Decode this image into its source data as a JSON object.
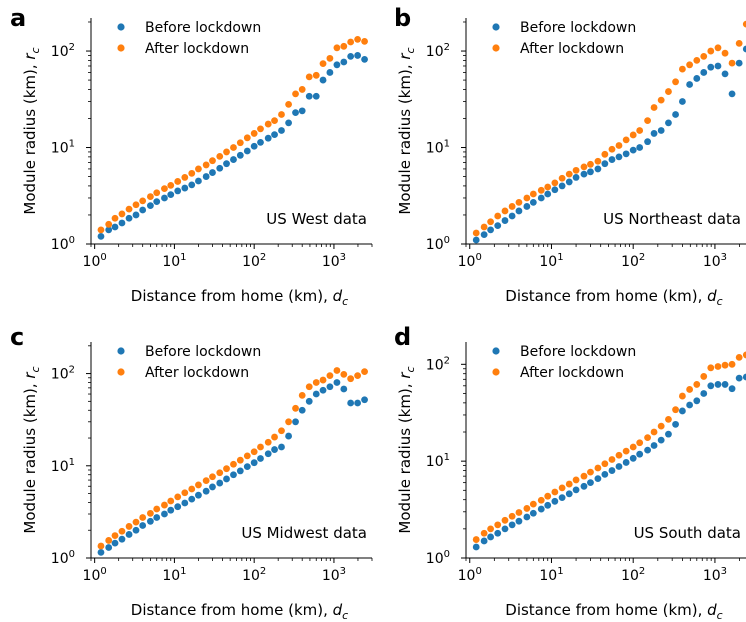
{
  "figure": {
    "panels_order": [
      "a",
      "b",
      "c",
      "d"
    ]
  },
  "chart_data": [
    {
      "panel_label": "a",
      "type": "scatter",
      "xlabel": "Distance from home (km), d_c",
      "xlabel_main": "Distance from home (km),",
      "xlabel_sym": "d",
      "xlabel_sub": "c",
      "ylabel": "Module radius (km), r_c",
      "ylabel_main": "Module radius (km),",
      "ylabel_sym": "r",
      "ylabel_sub": "c",
      "xscale": "log",
      "yscale": "log",
      "xlim": [
        0.9,
        3000
      ],
      "ylim": [
        1.0,
        220
      ],
      "x_ticks": [
        {
          "value": 1,
          "base": "10",
          "exp": "0"
        },
        {
          "value": 10,
          "base": "10",
          "exp": "1"
        },
        {
          "value": 100,
          "base": "10",
          "exp": "2"
        },
        {
          "value": 1000,
          "base": "10",
          "exp": "3"
        }
      ],
      "y_ticks": [
        {
          "value": 1,
          "base": "10",
          "exp": "0"
        },
        {
          "value": 10,
          "base": "10",
          "exp": "1"
        },
        {
          "value": 100,
          "base": "10",
          "exp": "2"
        }
      ],
      "annotation": "US West data",
      "legend_position": "top-left",
      "series": [
        {
          "name": "Before lockdown",
          "color": "#1f77b4",
          "x": [
            1.2,
            1.5,
            1.8,
            2.2,
            2.7,
            3.3,
            4,
            5,
            6,
            7.5,
            9,
            11,
            13.5,
            16.5,
            20,
            25,
            30,
            37,
            45,
            55,
            67,
            82,
            100,
            120,
            150,
            180,
            220,
            270,
            330,
            400,
            490,
            600,
            730,
            890,
            1090,
            1330,
            1620,
            1980,
            2420
          ],
          "y": [
            1.2,
            1.4,
            1.5,
            1.65,
            1.85,
            2.0,
            2.25,
            2.5,
            2.75,
            3.0,
            3.25,
            3.55,
            3.8,
            4.1,
            4.5,
            5.0,
            5.5,
            6.1,
            6.8,
            7.5,
            8.3,
            9.2,
            10.3,
            11.3,
            12.5,
            13.6,
            15,
            18,
            23,
            24,
            34,
            34,
            50,
            60,
            72,
            77,
            88,
            90,
            82
          ]
        },
        {
          "name": "After lockdown",
          "color": "#ff7f0e",
          "x": [
            1.2,
            1.5,
            1.8,
            2.2,
            2.7,
            3.3,
            4,
            5,
            6,
            7.5,
            9,
            11,
            13.5,
            16.5,
            20,
            25,
            30,
            37,
            45,
            55,
            67,
            82,
            100,
            120,
            150,
            180,
            220,
            270,
            330,
            400,
            490,
            600,
            730,
            890,
            1090,
            1330,
            1620,
            1980,
            2420
          ],
          "y": [
            1.4,
            1.6,
            1.85,
            2.05,
            2.3,
            2.55,
            2.8,
            3.1,
            3.4,
            3.75,
            4.05,
            4.45,
            4.9,
            5.4,
            6.0,
            6.6,
            7.3,
            8.1,
            9.0,
            10,
            11.2,
            12.6,
            14,
            15.6,
            17.5,
            19,
            22,
            28,
            36,
            40,
            54,
            56,
            74,
            84,
            108,
            112,
            124,
            132,
            126
          ]
        }
      ]
    },
    {
      "panel_label": "b",
      "type": "scatter",
      "xlabel": "Distance from home (km), d_c",
      "xlabel_main": "Distance from home (km),",
      "xlabel_sym": "d",
      "xlabel_sub": "c",
      "ylabel": "Module radius (km), r_c",
      "ylabel_main": "Module radius (km),",
      "ylabel_sym": "r",
      "ylabel_sub": "c",
      "xscale": "log",
      "yscale": "log",
      "xlim": [
        0.9,
        2400
      ],
      "ylim": [
        1.0,
        220
      ],
      "x_ticks": [
        {
          "value": 1,
          "base": "10",
          "exp": "0"
        },
        {
          "value": 10,
          "base": "10",
          "exp": "1"
        },
        {
          "value": 100,
          "base": "10",
          "exp": "2"
        },
        {
          "value": 1000,
          "base": "10",
          "exp": "3"
        }
      ],
      "y_ticks": [
        {
          "value": 1,
          "base": "10",
          "exp": "0"
        },
        {
          "value": 10,
          "base": "10",
          "exp": "1"
        },
        {
          "value": 100,
          "base": "10",
          "exp": "2"
        }
      ],
      "annotation": "US Northeast data",
      "legend_position": "top-left",
      "series": [
        {
          "name": "Before lockdown",
          "color": "#1f77b4",
          "x": [
            1.2,
            1.5,
            1.8,
            2.2,
            2.7,
            3.3,
            4,
            5,
            6,
            7.5,
            9,
            11,
            13.5,
            16.5,
            20,
            25,
            30,
            37,
            45,
            55,
            67,
            82,
            100,
            120,
            150,
            180,
            220,
            270,
            330,
            400,
            490,
            600,
            730,
            890,
            1090,
            1330,
            1620,
            1980,
            2420
          ],
          "y": [
            1.1,
            1.25,
            1.4,
            1.55,
            1.75,
            1.95,
            2.2,
            2.45,
            2.7,
            3.0,
            3.3,
            3.65,
            4.0,
            4.4,
            4.9,
            5.3,
            5.6,
            6.0,
            6.8,
            7.5,
            8.0,
            8.6,
            9.4,
            10,
            11.5,
            14,
            15,
            18,
            22,
            30,
            45,
            52,
            60,
            68,
            70,
            58,
            36,
            75,
            105
          ]
        },
        {
          "name": "After lockdown",
          "color": "#ff7f0e",
          "x": [
            1.2,
            1.5,
            1.8,
            2.2,
            2.7,
            3.3,
            4,
            5,
            6,
            7.5,
            9,
            11,
            13.5,
            16.5,
            20,
            25,
            30,
            37,
            45,
            55,
            67,
            82,
            100,
            120,
            150,
            180,
            220,
            270,
            330,
            400,
            490,
            600,
            730,
            890,
            1090,
            1330,
            1620,
            1980,
            2420
          ],
          "y": [
            1.3,
            1.5,
            1.7,
            1.95,
            2.2,
            2.45,
            2.7,
            3.0,
            3.3,
            3.6,
            3.9,
            4.3,
            4.8,
            5.3,
            5.8,
            6.3,
            6.7,
            7.2,
            8.5,
            9.6,
            10.5,
            12,
            13.5,
            15,
            19,
            26,
            31,
            38,
            48,
            65,
            72,
            80,
            88,
            100,
            108,
            95,
            75,
            120,
            190
          ]
        }
      ]
    },
    {
      "panel_label": "c",
      "type": "scatter",
      "xlabel": "Distance from home (km), d_c",
      "xlabel_main": "Distance from home (km),",
      "xlabel_sym": "d",
      "xlabel_sub": "c",
      "ylabel": "Module radius (km), r_c",
      "ylabel_main": "Module radius (km),",
      "ylabel_sym": "r",
      "ylabel_sub": "c",
      "xscale": "log",
      "yscale": "log",
      "xlim": [
        0.9,
        3000
      ],
      "ylim": [
        1.0,
        220
      ],
      "x_ticks": [
        {
          "value": 1,
          "base": "10",
          "exp": "0"
        },
        {
          "value": 10,
          "base": "10",
          "exp": "1"
        },
        {
          "value": 100,
          "base": "10",
          "exp": "2"
        },
        {
          "value": 1000,
          "base": "10",
          "exp": "3"
        }
      ],
      "y_ticks": [
        {
          "value": 1,
          "base": "10",
          "exp": "0"
        },
        {
          "value": 10,
          "base": "10",
          "exp": "1"
        },
        {
          "value": 100,
          "base": "10",
          "exp": "2"
        }
      ],
      "annotation": "US Midwest data",
      "legend_position": "top-left",
      "series": [
        {
          "name": "Before lockdown",
          "color": "#1f77b4",
          "x": [
            1.2,
            1.5,
            1.8,
            2.2,
            2.7,
            3.3,
            4,
            5,
            6,
            7.5,
            9,
            11,
            13.5,
            16.5,
            20,
            25,
            30,
            37,
            45,
            55,
            67,
            82,
            100,
            120,
            150,
            180,
            220,
            270,
            330,
            400,
            490,
            600,
            730,
            890,
            1090,
            1330,
            1620,
            1980,
            2420
          ],
          "y": [
            1.15,
            1.3,
            1.45,
            1.6,
            1.8,
            2.0,
            2.25,
            2.5,
            2.75,
            3.0,
            3.3,
            3.6,
            3.95,
            4.35,
            4.8,
            5.3,
            5.9,
            6.5,
            7.2,
            8.0,
            8.8,
            9.8,
            10.8,
            12,
            13.5,
            15,
            16,
            21,
            30,
            40,
            50,
            60,
            66,
            72,
            80,
            68,
            48,
            48,
            52
          ]
        },
        {
          "name": "After lockdown",
          "color": "#ff7f0e",
          "x": [
            1.2,
            1.5,
            1.8,
            2.2,
            2.7,
            3.3,
            4,
            5,
            6,
            7.5,
            9,
            11,
            13.5,
            16.5,
            20,
            25,
            30,
            37,
            45,
            55,
            67,
            82,
            100,
            120,
            150,
            180,
            220,
            270,
            330,
            400,
            490,
            600,
            730,
            890,
            1090,
            1330,
            1620,
            1980,
            2420
          ],
          "y": [
            1.35,
            1.55,
            1.75,
            1.95,
            2.2,
            2.45,
            2.75,
            3.05,
            3.4,
            3.75,
            4.15,
            4.6,
            5.1,
            5.6,
            6.2,
            6.9,
            7.6,
            8.4,
            9.3,
            10.4,
            11.5,
            12.8,
            14.2,
            16,
            18,
            20.5,
            24,
            30,
            42,
            58,
            72,
            80,
            85,
            95,
            108,
            98,
            88,
            95,
            105
          ]
        }
      ]
    },
    {
      "panel_label": "d",
      "type": "scatter",
      "xlabel": "Distance from home (km), d_c",
      "xlabel_main": "Distance from home (km),",
      "xlabel_sym": "d",
      "xlabel_sub": "c",
      "ylabel": "Module radius (km), r_c",
      "ylabel_main": "Module radius (km),",
      "ylabel_sym": "r",
      "ylabel_sub": "c",
      "xscale": "log",
      "yscale": "log",
      "xlim": [
        0.9,
        2400
      ],
      "ylim": [
        1.0,
        170
      ],
      "x_ticks": [
        {
          "value": 1,
          "base": "10",
          "exp": "0"
        },
        {
          "value": 10,
          "base": "10",
          "exp": "1"
        },
        {
          "value": 100,
          "base": "10",
          "exp": "2"
        },
        {
          "value": 1000,
          "base": "10",
          "exp": "3"
        }
      ],
      "y_ticks": [
        {
          "value": 1,
          "base": "10",
          "exp": "0"
        },
        {
          "value": 10,
          "base": "10",
          "exp": "1"
        },
        {
          "value": 100,
          "base": "10",
          "exp": "2"
        }
      ],
      "annotation": "US South data",
      "legend_position": "top-left",
      "series": [
        {
          "name": "Before lockdown",
          "color": "#1f77b4",
          "x": [
            1.2,
            1.5,
            1.8,
            2.2,
            2.7,
            3.3,
            4,
            5,
            6,
            7.5,
            9,
            11,
            13.5,
            16.5,
            20,
            25,
            30,
            37,
            45,
            55,
            67,
            82,
            100,
            120,
            150,
            180,
            220,
            270,
            330,
            400,
            490,
            600,
            730,
            890,
            1090,
            1330,
            1620,
            1980,
            2420
          ],
          "y": [
            1.3,
            1.5,
            1.65,
            1.8,
            2.0,
            2.2,
            2.4,
            2.65,
            2.9,
            3.2,
            3.5,
            3.85,
            4.2,
            4.6,
            5.05,
            5.5,
            6.0,
            6.6,
            7.3,
            8.0,
            8.8,
            9.7,
            10.7,
            11.8,
            13,
            14.5,
            16.5,
            19,
            24,
            33,
            38,
            42,
            50,
            60,
            62,
            62,
            56,
            72,
            74
          ]
        },
        {
          "name": "After lockdown",
          "color": "#ff7f0e",
          "x": [
            1.2,
            1.5,
            1.8,
            2.2,
            2.7,
            3.3,
            4,
            5,
            6,
            7.5,
            9,
            11,
            13.5,
            16.5,
            20,
            25,
            30,
            37,
            45,
            55,
            67,
            82,
            100,
            120,
            150,
            180,
            220,
            270,
            330,
            400,
            490,
            600,
            730,
            890,
            1090,
            1330,
            1620,
            1980,
            2420
          ],
          "y": [
            1.55,
            1.8,
            2.0,
            2.2,
            2.45,
            2.7,
            2.95,
            3.25,
            3.6,
            3.95,
            4.35,
            4.8,
            5.3,
            5.8,
            6.4,
            7.0,
            7.7,
            8.5,
            9.4,
            10.4,
            11.5,
            12.7,
            14,
            15.5,
            17.5,
            20,
            23,
            27,
            34,
            47,
            55,
            62,
            75,
            92,
            95,
            98,
            100,
            118,
            125
          ]
        }
      ]
    }
  ]
}
